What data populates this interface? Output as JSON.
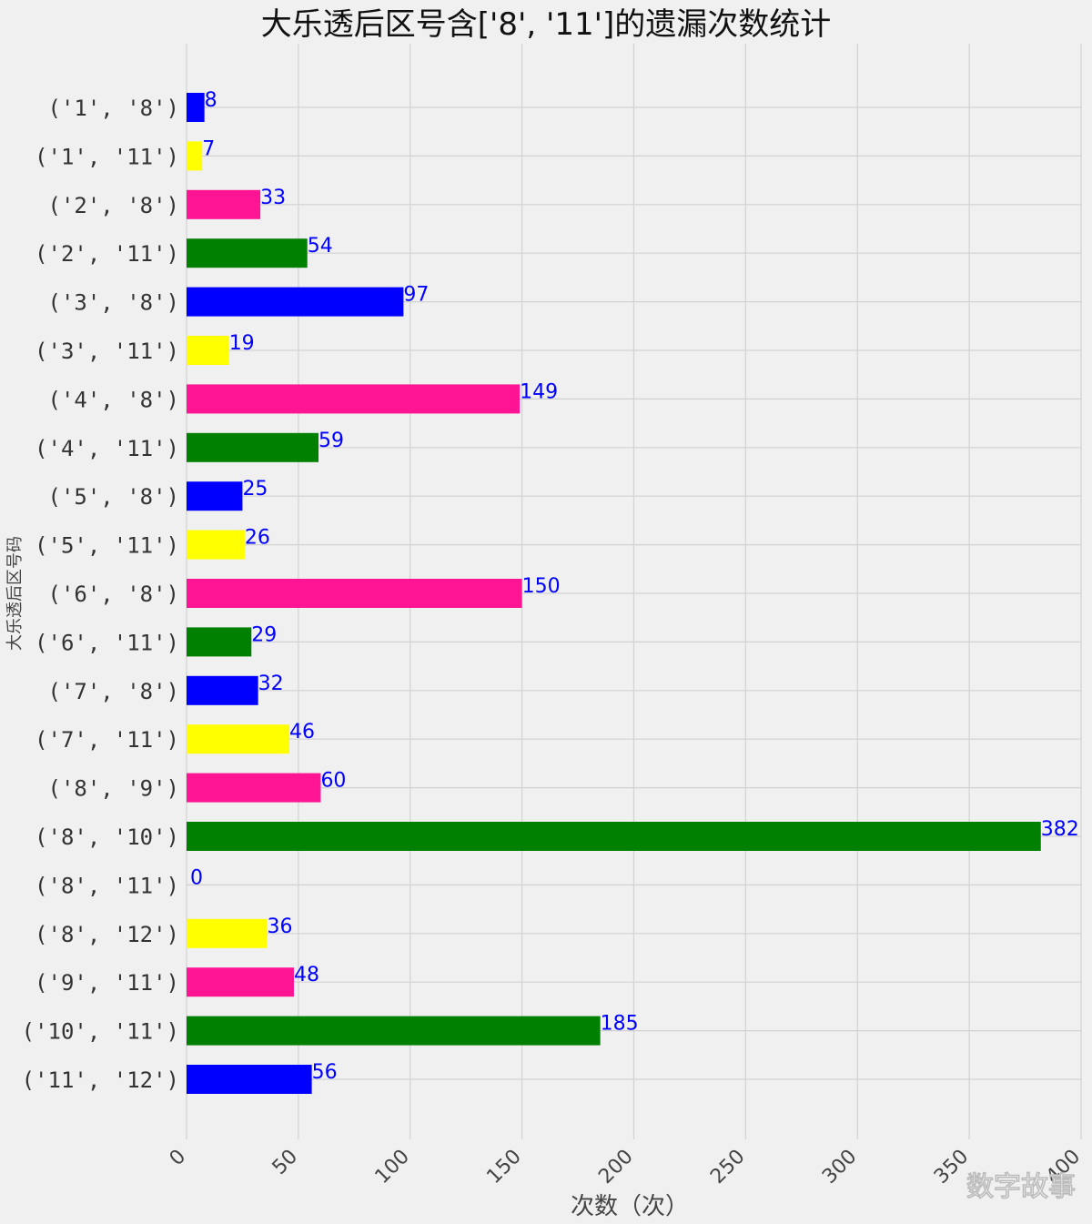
{
  "watermark": "数字故事",
  "chart_data": {
    "type": "bar",
    "orientation": "horizontal",
    "title": "大乐透后区号含['8', '11']的遗漏次数统计",
    "xlabel": "次数（次）",
    "ylabel": "大乐透后区号码",
    "xlim": [
      0,
      400
    ],
    "xticks": [
      0,
      50,
      100,
      150,
      200,
      250,
      300,
      350,
      400
    ],
    "grid": true,
    "categories": [
      "('1', '8')",
      "('1', '11')",
      "('2', '8')",
      "('2', '11')",
      "('3', '8')",
      "('3', '11')",
      "('4', '8')",
      "('4', '11')",
      "('5', '8')",
      "('5', '11')",
      "('6', '8')",
      "('6', '11')",
      "('7', '8')",
      "('7', '11')",
      "('8', '9')",
      "('8', '10')",
      "('8', '11')",
      "('8', '12')",
      "('9', '11')",
      "('10', '11')",
      "('11', '12')"
    ],
    "values": [
      8,
      7,
      33,
      54,
      97,
      19,
      149,
      59,
      25,
      26,
      150,
      29,
      32,
      46,
      60,
      382,
      0,
      36,
      48,
      185,
      56
    ],
    "colors": [
      "#0000ff",
      "#ffff00",
      "#ff1493",
      "#008000",
      "#0000ff",
      "#ffff00",
      "#ff1493",
      "#008000",
      "#0000ff",
      "#ffff00",
      "#ff1493",
      "#008000",
      "#0000ff",
      "#ffff00",
      "#ff1493",
      "#008000",
      "#0000ff",
      "#ffff00",
      "#ff1493",
      "#008000",
      "#0000ff"
    ],
    "label_color": "#0000ff"
  }
}
